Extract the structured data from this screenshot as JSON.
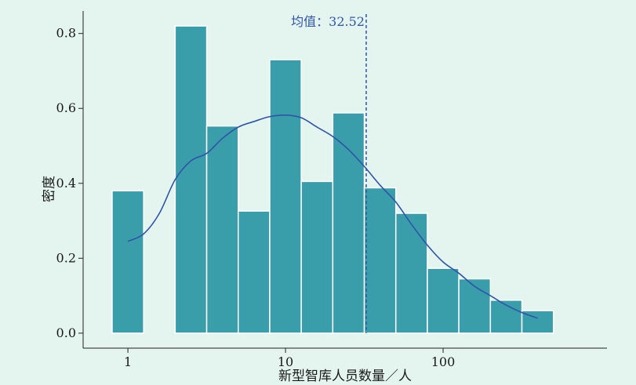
{
  "chart_data": {
    "type": "bar",
    "xlabel": "新型智库人员数量／人",
    "ylabel": "密度",
    "x_scale": "log10",
    "xlim": [
      0.52,
      1096
    ],
    "ylim": [
      -0.04,
      0.86
    ],
    "x_ticks": [
      {
        "value": 1,
        "label": "1"
      },
      {
        "value": 10,
        "label": "10"
      },
      {
        "value": 100,
        "label": "100"
      }
    ],
    "y_ticks": [
      {
        "value": 0.0,
        "label": "0.0"
      },
      {
        "value": 0.2,
        "label": "0.2"
      },
      {
        "value": 0.4,
        "label": "0.4"
      },
      {
        "value": 0.6,
        "label": "0.6"
      },
      {
        "value": 0.8,
        "label": "0.8"
      }
    ],
    "bin_edges_log10": [
      -0.1,
      0.1,
      0.3,
      0.5,
      0.7,
      0.9,
      1.1,
      1.3,
      1.5,
      1.7,
      1.9,
      2.1,
      2.3,
      2.5,
      2.7
    ],
    "values": [
      0.38,
      0.0,
      0.82,
      0.553,
      0.326,
      0.73,
      0.405,
      0.588,
      0.388,
      0.32,
      0.173,
      0.145,
      0.088,
      0.06
    ],
    "kde": {
      "log10_x": [
        0.0,
        0.1,
        0.2,
        0.3,
        0.4,
        0.5,
        0.6,
        0.7,
        0.8,
        0.9,
        1.0,
        1.1,
        1.2,
        1.3,
        1.4,
        1.5,
        1.6,
        1.7,
        1.8,
        1.9,
        2.0,
        2.1,
        2.2,
        2.3,
        2.4,
        2.5,
        2.6
      ],
      "y": [
        0.245,
        0.265,
        0.32,
        0.41,
        0.46,
        0.48,
        0.52,
        0.55,
        0.565,
        0.578,
        0.582,
        0.575,
        0.55,
        0.525,
        0.49,
        0.445,
        0.395,
        0.35,
        0.29,
        0.235,
        0.19,
        0.16,
        0.125,
        0.1,
        0.075,
        0.055,
        0.04
      ]
    },
    "mean_value": 32.52,
    "mean_label": "均值：32.52",
    "bar_color": "#3a9daa",
    "kde_color": "#2f55a8",
    "grid": false,
    "legend": "none"
  }
}
